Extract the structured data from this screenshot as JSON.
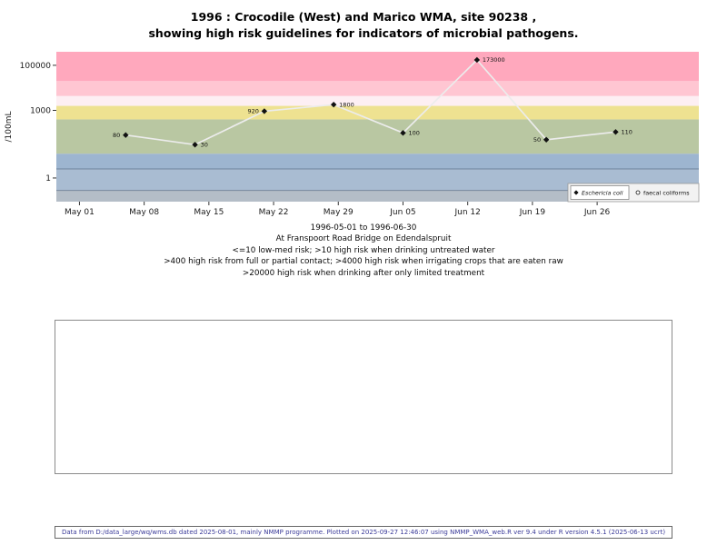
{
  "title": {
    "line1": "1996 : Crocodile (West) and Marico WMA, site 90238 ,",
    "line2": "showing high risk guidelines for indicators of microbial pathogens."
  },
  "captions": [
    "1996-05-01 to 1996-06-30",
    "At Franspoort Road Bridge on Edendalspruit",
    "<=10 low-med risk; >10 high risk when drinking untreated water",
    ">400 high risk from full or partial contact; >4000 high risk when irrigating crops that are eaten raw",
    ">20000 high risk when drinking after only limited treatment"
  ],
  "footer": "Data from D:/data_large/wq/wms.db dated 2025-08-01, mainly NMMP programme. Plotted on 2025-09-27 12:46:07 using NMMP_WMA_web.R ver 9.4 under R version 4.5.1 (2025-06-13 ucrt)",
  "chart_data": {
    "type": "line",
    "title": "1996 : Crocodile (West) and Marico WMA, site 90238 , showing high risk guidelines for indicators of microbial pathogens.",
    "xlabel": "1996-05-01 to 1996-06-30",
    "ylabel": "/100mL",
    "y_scale": "log10",
    "x_range_days": [
      -2.5,
      67
    ],
    "ylog_range": [
      -1.05,
      5.6
    ],
    "x_ticks": [
      {
        "day": 0,
        "label": "May 01"
      },
      {
        "day": 7,
        "label": "May 08"
      },
      {
        "day": 14,
        "label": "May 15"
      },
      {
        "day": 21,
        "label": "May 22"
      },
      {
        "day": 28,
        "label": "May 29"
      },
      {
        "day": 35,
        "label": "Jun 05"
      },
      {
        "day": 42,
        "label": "Jun 12"
      },
      {
        "day": 49,
        "label": "Jun 19"
      },
      {
        "day": 56,
        "label": "Jun 26"
      }
    ],
    "y_ticks": [
      {
        "value": 1,
        "label": "1"
      },
      {
        "value": 1000,
        "label": "1000"
      },
      {
        "value": 100000,
        "label": "100000"
      }
    ],
    "bands": [
      {
        "from_log": -1.05,
        "to_log": -0.55,
        "color": "#b4bdc7",
        "meaning": "lowest band"
      },
      {
        "from_log": -0.55,
        "to_log": 0.4,
        "color": "#a9bcd2",
        "meaning": "low band"
      },
      {
        "from_log": 0.4,
        "to_log": 1.08,
        "color": "#9db5d0",
        "meaning": "<=10 low-med risk"
      },
      {
        "from_log": 1.08,
        "to_log": 2.6,
        "color": "#b9c7a2",
        "meaning": ">10 high risk drinking untreated water"
      },
      {
        "from_log": 2.6,
        "to_log": 3.2,
        "color": "#eee291",
        "meaning": ">400 high risk full or partial contact"
      },
      {
        "from_log": 3.2,
        "to_log": 3.64,
        "color": "#fdeff3",
        "meaning": "transition band"
      },
      {
        "from_log": 3.64,
        "to_log": 4.3,
        "color": "#ffc6d2",
        "meaning": ">4000 high risk irrigating crops eaten raw"
      },
      {
        "from_log": 4.3,
        "to_log": 5.6,
        "color": "#ffa8bd",
        "meaning": ">20000 high risk drinking after limited treatment"
      }
    ],
    "band_divider_logs": [
      0.4,
      -0.55
    ],
    "line_color": "#ececec",
    "marker_color": "#111111",
    "series": [
      {
        "name": "Eschericia coli",
        "marker": "diamond",
        "points": [
          {
            "day": 5,
            "value": 80,
            "label": "80",
            "label_side": "left"
          },
          {
            "day": 12.5,
            "value": 30,
            "label": "30",
            "label_side": "right"
          },
          {
            "day": 20,
            "value": 920,
            "label": "920",
            "label_side": "left"
          },
          {
            "day": 27.5,
            "value": 1800,
            "label": "1800",
            "label_side": "right"
          },
          {
            "day": 35,
            "value": 100,
            "label": "100",
            "label_side": "right"
          },
          {
            "day": 43,
            "value": 173000,
            "label": "173000",
            "label_side": "right"
          },
          {
            "day": 50.5,
            "value": 50,
            "label": "50",
            "label_side": "left"
          },
          {
            "day": 58,
            "value": 110,
            "label": "110",
            "label_side": "right"
          }
        ]
      },
      {
        "name": "faecal coliforms",
        "marker": "circle",
        "points": []
      }
    ],
    "legend": {
      "position": "bottom-right-inside",
      "items": [
        {
          "label": "Eschericia coli",
          "marker": "diamond",
          "italic": true,
          "boxed": true
        },
        {
          "label": "faecal coliforms",
          "marker": "circle",
          "italic": false,
          "boxed": false
        }
      ]
    }
  }
}
